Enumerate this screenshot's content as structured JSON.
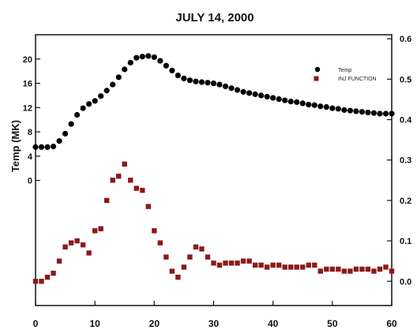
{
  "chart_data": {
    "type": "scatter",
    "title": "JULY 14, 2000",
    "xlabel": "",
    "ylabel": "Temp (MK)",
    "y2label": "",
    "xlim": [
      0,
      60
    ],
    "ylim": [
      -20.6,
      24
    ],
    "y2lim": [
      -0.06,
      0.61
    ],
    "x_ticks": [
      0,
      10,
      20,
      30,
      40,
      50,
      60
    ],
    "y_ticks": [
      0,
      4,
      8,
      12,
      16,
      20
    ],
    "y2_ticks": [
      0.0,
      0.1,
      0.2,
      0.3,
      0.4,
      0.5,
      0.6
    ],
    "y2_tick_labels": [
      "0.0",
      "0.1",
      "0.2",
      "0.3",
      "0.4",
      "0.5",
      "0.6"
    ],
    "legend": {
      "position": "top-right",
      "entries": [
        "Temp",
        "INJ FUNCTION"
      ]
    },
    "series": [
      {
        "name": "Temp",
        "axis": "left",
        "color": "#000000",
        "marker": "circle",
        "x": [
          0.0,
          1.0,
          2.0,
          3.0,
          4.0,
          5.0,
          6.0,
          7.0,
          8.0,
          9.0,
          10.0,
          11.0,
          12.0,
          13.0,
          14.0,
          15.0,
          16.0,
          17.0,
          18.0,
          19.0,
          20.0,
          21.0,
          22.0,
          23.0,
          24.0,
          25.0,
          26.0,
          27.0,
          28.0,
          29.0,
          30.0,
          31.0,
          32.0,
          33.0,
          34.0,
          35.0,
          36.0,
          37.0,
          38.0,
          39.0,
          40.0,
          41.0,
          42.0,
          43.0,
          44.0,
          45.0,
          46.0,
          47.0,
          48.0,
          49.0,
          50.0,
          51.0,
          52.0,
          53.0,
          54.0,
          55.0,
          56.0,
          57.0,
          58.0,
          59.0,
          60.0
        ],
        "y": [
          5.5,
          5.5,
          5.5,
          5.6,
          6.5,
          7.7,
          9.3,
          10.8,
          11.9,
          12.6,
          13.1,
          13.9,
          14.8,
          15.8,
          17.0,
          18.3,
          19.4,
          20.2,
          20.4,
          20.5,
          20.3,
          19.7,
          18.9,
          18.1,
          17.3,
          16.8,
          16.5,
          16.3,
          16.2,
          16.1,
          16.0,
          15.8,
          15.5,
          15.2,
          14.9,
          14.6,
          14.4,
          14.2,
          14.0,
          13.8,
          13.6,
          13.4,
          13.2,
          13.0,
          12.9,
          12.7,
          12.5,
          12.4,
          12.2,
          12.1,
          11.9,
          11.8,
          11.6,
          11.5,
          11.4,
          11.3,
          11.2,
          11.1,
          11.0,
          11.0,
          11.0
        ]
      },
      {
        "name": "INJ FUNCTION",
        "axis": "right",
        "color": "#8b1a1a",
        "marker": "square",
        "x": [
          0.0,
          1.0,
          2.0,
          3.0,
          4.0,
          5.0,
          6.0,
          7.0,
          8.0,
          9.0,
          10.0,
          11.0,
          12.0,
          13.0,
          14.0,
          15.0,
          16.0,
          17.0,
          18.0,
          19.0,
          20.0,
          21.0,
          22.0,
          23.0,
          24.0,
          25.0,
          26.0,
          27.0,
          28.0,
          29.0,
          30.0,
          31.0,
          32.0,
          33.0,
          34.0,
          35.0,
          36.0,
          37.0,
          38.0,
          39.0,
          40.0,
          41.0,
          42.0,
          43.0,
          44.0,
          45.0,
          46.0,
          47.0,
          48.0,
          49.0,
          50.0,
          51.0,
          52.0,
          53.0,
          54.0,
          55.0,
          56.0,
          57.0,
          58.0,
          59.0,
          60.0
        ],
        "y": [
          0.0,
          0.0,
          0.01,
          0.02,
          0.05,
          0.085,
          0.095,
          0.1,
          0.09,
          0.07,
          0.125,
          0.13,
          0.2,
          0.25,
          0.26,
          0.29,
          0.25,
          0.23,
          0.225,
          0.185,
          0.125,
          0.095,
          0.06,
          0.025,
          0.01,
          0.035,
          0.06,
          0.085,
          0.08,
          0.06,
          0.045,
          0.04,
          0.045,
          0.045,
          0.045,
          0.05,
          0.05,
          0.04,
          0.04,
          0.035,
          0.04,
          0.04,
          0.035,
          0.035,
          0.035,
          0.035,
          0.04,
          0.04,
          0.025,
          0.03,
          0.03,
          0.03,
          0.025,
          0.025,
          0.03,
          0.03,
          0.03,
          0.025,
          0.03,
          0.035,
          0.025
        ]
      }
    ]
  }
}
